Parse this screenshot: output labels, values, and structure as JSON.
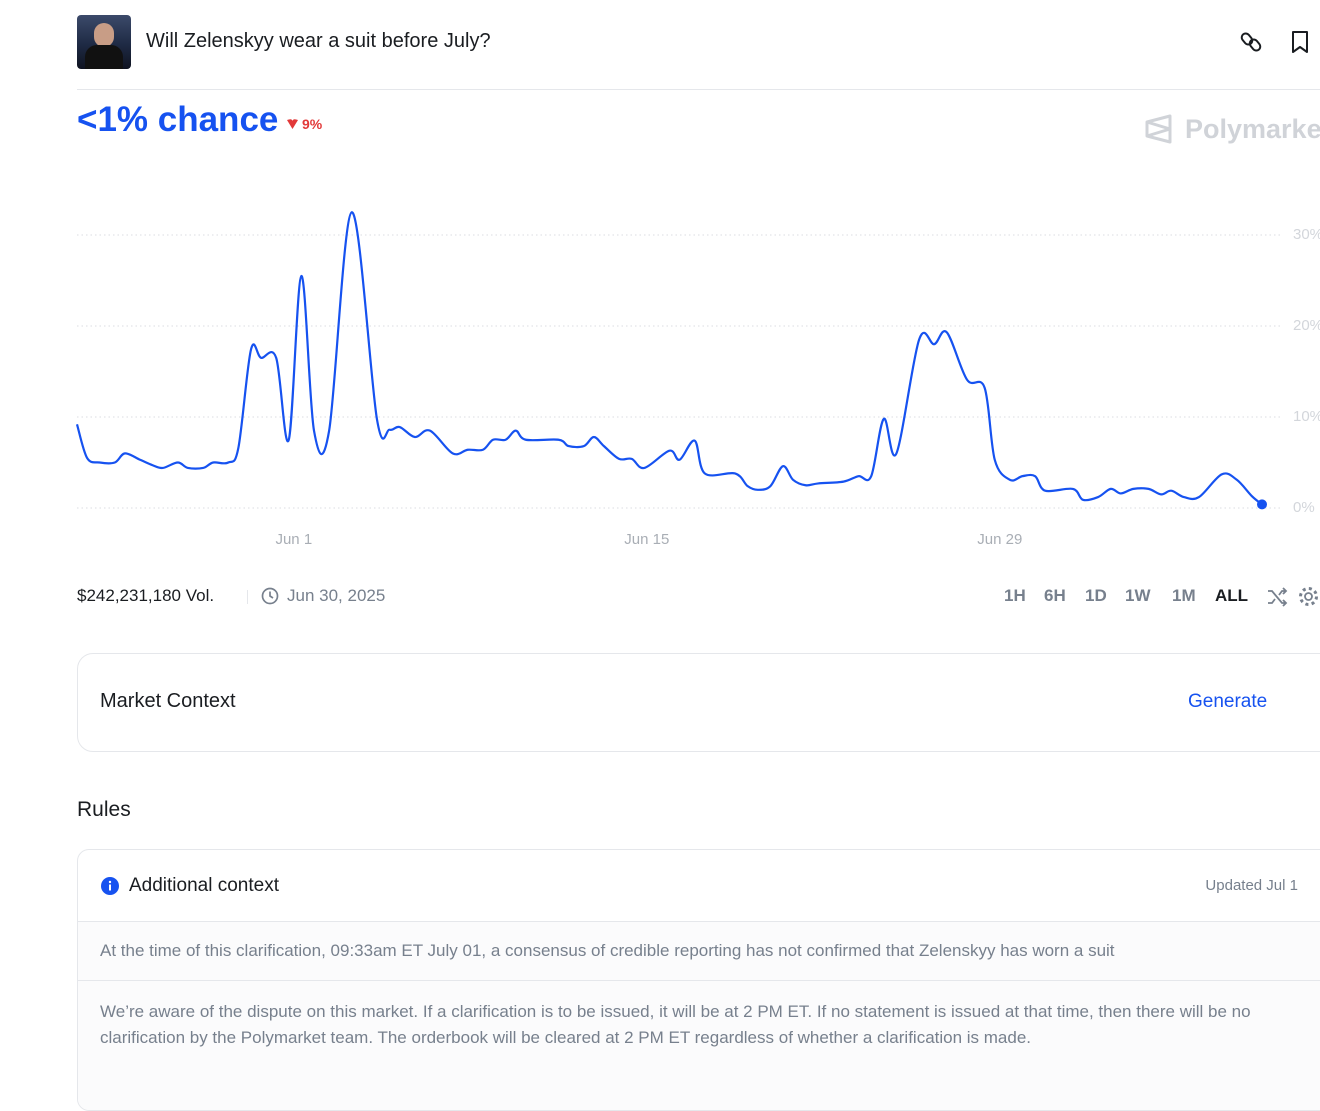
{
  "header": {
    "title": "Will Zelenskyy wear a suit before July?",
    "chance": "<1% chance",
    "change": "9%",
    "brand": "Polymarket"
  },
  "chart_data": {
    "type": "line",
    "color": "#1652f0",
    "grid": true,
    "x": [
      -7.6,
      -7.2,
      -6.7,
      -6.1,
      -5.7,
      -5.1,
      -4.6,
      -4.2,
      -3.6,
      -3.2,
      -2.6,
      -2.2,
      -1.6,
      -1.2,
      -0.7,
      -0.3,
      0.3,
      0.8,
      1.3,
      1.8,
      2.4,
      3.3,
      4.3,
      4.8,
      5.2,
      5.8,
      6.4,
      7.3,
      7.9,
      8.5,
      8.9,
      9.4,
      9.8,
      10.2,
      11.5,
      11.9,
      12.5,
      12.9,
      13.3,
      13.9,
      14.4,
      14.9,
      15.9,
      16.3,
      16.9,
      17.3,
      18.5,
      19.0,
      19.4,
      19.9,
      20.4,
      20.8,
      21.3,
      21.8,
      22.8,
      23.4,
      23.9,
      24.4,
      24.9,
      25.8,
      26.4,
      26.9,
      27.7,
      28.4,
      28.8,
      29.4,
      29.9,
      30.4,
      30.8,
      31.9,
      32.3,
      32.9,
      33.4,
      33.8,
      34.3,
      34.9,
      35.4,
      35.8,
      36.3,
      36.9,
      37.8,
      38.4,
      39.0,
      39.4
    ],
    "values": [
      9.2,
      5.5,
      5,
      5,
      6,
      5.3,
      4.7,
      4.4,
      5,
      4.4,
      4.4,
      5,
      5,
      6.6,
      17.4,
      16.5,
      16.5,
      7.5,
      25.5,
      8.5,
      8.5,
      32.5,
      9.7,
      8.6,
      8.9,
      7.8,
      8.5,
      6,
      6.4,
      6.4,
      7.5,
      7.5,
      8.5,
      7.5,
      7.5,
      6.8,
      6.8,
      7.8,
      6.8,
      5.4,
      5.4,
      4.4,
      6.3,
      5.3,
      7.4,
      3.8,
      3.8,
      2.4,
      2,
      2.4,
      4.6,
      3.1,
      2.5,
      2.7,
      2.9,
      3.5,
      3.5,
      9.8,
      6,
      18.5,
      18,
      19.3,
      14.1,
      13.2,
      5.3,
      3.1,
      3.5,
      3.5,
      1.9,
      2.1,
      0.9,
      1.2,
      2.1,
      1.6,
      2.1,
      2.1,
      1.5,
      1.9,
      1.2,
      1.2,
      3.7,
      3.1,
      1.3,
      0.4
    ],
    "xlim": [
      -7.6,
      39.4
    ],
    "xticks": [
      {
        "value": 1,
        "label": "Jun 1"
      },
      {
        "value": 15,
        "label": "Jun 15"
      },
      {
        "value": 29,
        "label": "Jun 29"
      }
    ],
    "ylim": [
      0,
      35
    ],
    "yticks": [
      {
        "value": 0,
        "label": "0%"
      },
      {
        "value": 10,
        "label": "10%"
      },
      {
        "value": 20,
        "label": "20%"
      },
      {
        "value": 30,
        "label": "30%"
      }
    ]
  },
  "footer": {
    "volume": "$242,231,180 Vol.",
    "date": "Jun 30, 2025",
    "ranges": [
      "1H",
      "6H",
      "1D",
      "1W",
      "1M",
      "ALL"
    ]
  },
  "market_context": {
    "title": "Market Context",
    "action": "Generate"
  },
  "rules": {
    "title": "Rules",
    "context_title": "Additional context",
    "updated": "Updated Jul 1",
    "paragraphs": [
      "At the time of this clarification, 09:33am ET July 01, a consensus of credible reporting has not confirmed that Zelenskyy has worn a suit",
      "We’re aware of the dispute on this market. If a clarification is to be issued, it will be at 2 PM ET. If no statement is issued at that time, then there will be no clarification by the Polymarket team. The orderbook will be cleared at 2 PM ET regardless of whether a clarification is made."
    ]
  }
}
